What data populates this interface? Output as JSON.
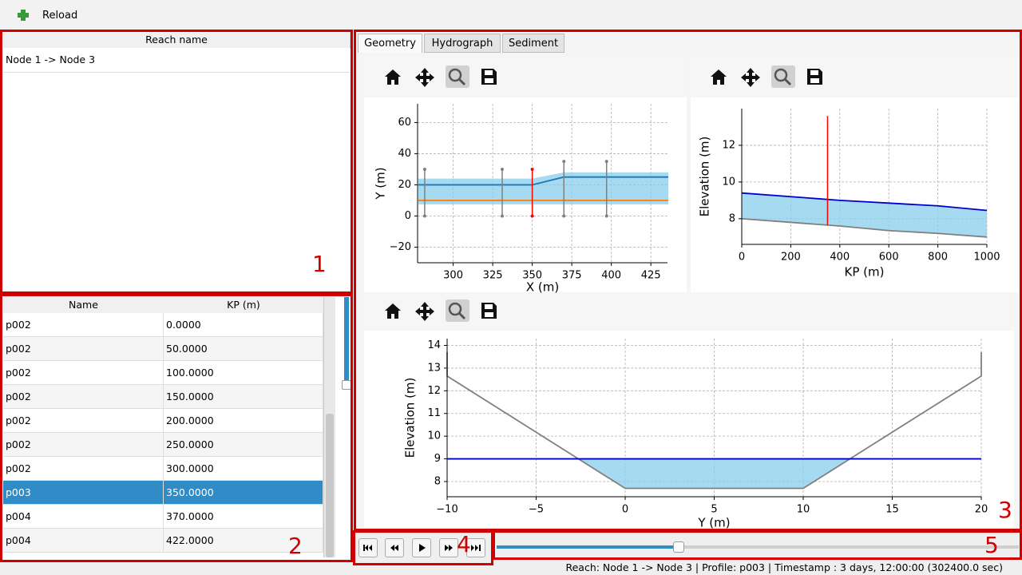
{
  "toolbar": {
    "reload": "Reload"
  },
  "reach_table": {
    "header": "Reach name",
    "rows": [
      "Node 1 -> Node 3"
    ]
  },
  "profile_table": {
    "headers": [
      "Name",
      "KP (m)"
    ],
    "selected_row": 7,
    "rows": [
      [
        "p002",
        "0.0000"
      ],
      [
        "p002",
        "50.0000"
      ],
      [
        "p002",
        "100.0000"
      ],
      [
        "p002",
        "150.0000"
      ],
      [
        "p002",
        "200.0000"
      ],
      [
        "p002",
        "250.0000"
      ],
      [
        "p002",
        "300.0000"
      ],
      [
        "p003",
        "350.0000"
      ],
      [
        "p004",
        "370.0000"
      ],
      [
        "p004",
        "422.0000"
      ]
    ]
  },
  "tabs": [
    "Geometry",
    "Hydrograph",
    "Sediment"
  ],
  "plots": [
    {
      "xlabel": "X (m)",
      "ylabel": "Y (m)",
      "xlim": [
        277.5,
        435.5
      ],
      "ylim": [
        -30,
        72
      ],
      "xticks": [
        300,
        325,
        350,
        375,
        400,
        425
      ],
      "yticks": [
        {
          "value": -20,
          "label": "−20"
        },
        0,
        20,
        40,
        60
      ],
      "grid": true,
      "series": [
        {
          "kind": "band",
          "color": "#87ceeb",
          "x": [
            278,
            350,
            370,
            436
          ],
          "y_low": [
            7.5,
            7.5,
            7.5,
            7.5
          ],
          "y_high": [
            24,
            24,
            28,
            28
          ]
        },
        {
          "kind": "line",
          "color": "#ff7f0e",
          "x": [
            278,
            436
          ],
          "y": [
            10,
            10
          ]
        },
        {
          "kind": "line",
          "color": "#1f77b4",
          "x": [
            278,
            350,
            370,
            436
          ],
          "y": [
            20,
            20,
            25,
            25
          ]
        },
        {
          "kind": "vlines",
          "markers": true,
          "colors": [
            "#808080",
            "#808080",
            "#ff0000",
            "#808080",
            "#808080"
          ],
          "x": [
            282,
            331,
            350,
            370,
            397
          ],
          "y_low": [
            0,
            0,
            0,
            0,
            0
          ],
          "y_high": [
            30,
            30,
            30,
            35,
            35
          ]
        }
      ]
    },
    {
      "xlabel": "KP (m)",
      "ylabel": "Elevation (m)",
      "xlim": [
        0,
        1000
      ],
      "ylim": [
        6.6,
        14
      ],
      "xticks": [
        0,
        200,
        400,
        600,
        800,
        1000
      ],
      "yticks": [
        8,
        10,
        12
      ],
      "grid": true,
      "series": [
        {
          "kind": "band",
          "color": "#87ceeb",
          "x": [
            0,
            200,
            400,
            600,
            800,
            1000
          ],
          "y_low": [
            8.0,
            7.8,
            7.6,
            7.35,
            7.2,
            7.0
          ],
          "y_high": [
            9.4,
            9.2,
            9.0,
            8.85,
            8.7,
            8.45
          ]
        },
        {
          "kind": "line",
          "color": "#808080",
          "x": [
            0,
            200,
            400,
            600,
            800,
            1000
          ],
          "y": [
            8.0,
            7.8,
            7.6,
            7.35,
            7.2,
            7.0
          ]
        },
        {
          "kind": "line",
          "color": "#0000cd",
          "x": [
            0,
            200,
            400,
            600,
            800,
            1000
          ],
          "y": [
            9.4,
            9.2,
            9.0,
            8.85,
            8.7,
            8.45
          ]
        },
        {
          "kind": "vlines",
          "markers": false,
          "colors": [
            "#ff0000"
          ],
          "x": [
            350
          ],
          "y_low": [
            7.65
          ],
          "y_high": [
            13.6
          ]
        }
      ]
    },
    {
      "xlabel": "Y (m)",
      "ylabel": "Elevation (m)",
      "xlim": [
        -10,
        20
      ],
      "ylim": [
        7.33,
        14.3
      ],
      "xticks": [
        {
          "value": -10,
          "label": "−10"
        },
        {
          "value": -5,
          "label": "−5"
        },
        0,
        5,
        10,
        15,
        20
      ],
      "yticks": [
        8,
        9,
        10,
        11,
        12,
        13,
        14
      ],
      "grid": true,
      "series": [
        {
          "kind": "band",
          "color": "#87ceeb",
          "x": [
            -2.63,
            0,
            10,
            12.63
          ],
          "y_low": [
            9,
            7.7,
            7.7,
            9
          ],
          "y_high": [
            9,
            9,
            9,
            9
          ]
        },
        {
          "kind": "line",
          "color": "#808080",
          "x": [
            -10,
            -10,
            0,
            10,
            20,
            20
          ],
          "y": [
            13.7,
            12.65,
            7.7,
            7.7,
            12.65,
            13.7
          ]
        },
        {
          "kind": "line",
          "color": "#0000cd",
          "x": [
            -10,
            20
          ],
          "y": [
            9,
            9
          ]
        }
      ]
    }
  ],
  "annotations": [
    "1",
    "2",
    "3",
    "4",
    "5"
  ],
  "status": "Reach: Node 1 -> Node 3 | Profile: p003 | Timestamp : 3 days, 12:00:00 (302400.0 sec)"
}
